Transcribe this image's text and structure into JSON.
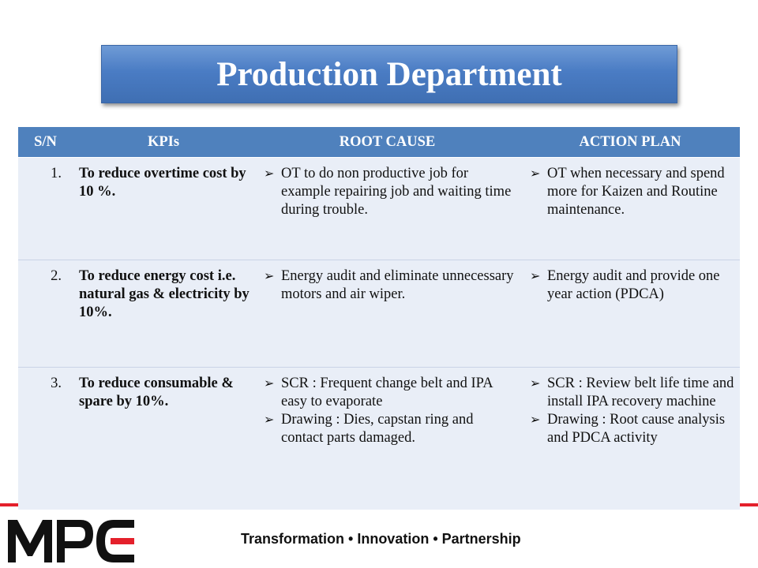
{
  "title": "Production Department",
  "table": {
    "headers": [
      "S/N",
      "KPIs",
      "ROOT CAUSE",
      "ACTION PLAN"
    ],
    "rows": [
      {
        "sn": "1.",
        "kpi": "To reduce overtime cost by 10 %.",
        "root_cause": [
          "OT to do non productive job for example repairing job and waiting time during trouble."
        ],
        "action_plan": [
          "OT when necessary and spend more for Kaizen and Routine maintenance."
        ]
      },
      {
        "sn": "2.",
        "kpi": "To reduce energy cost i.e. natural gas & electricity by 10%.",
        "root_cause": [
          "Energy audit and eliminate unnecessary motors and air wiper."
        ],
        "action_plan": [
          "Energy audit and provide one year action (PDCA)"
        ]
      },
      {
        "sn": "3.",
        "kpi": "To reduce consumable & spare by 10%.",
        "root_cause": [
          "SCR : Frequent change belt and IPA easy to evaporate",
          "Drawing : Dies, capstan ring and contact parts damaged."
        ],
        "action_plan": [
          "SCR : Review belt life time and install IPA recovery machine",
          "Drawing : Root cause analysis and PDCA activity"
        ]
      }
    ]
  },
  "footer": {
    "tagline": "Transformation • Innovation • Partnership",
    "logo_text": "MPC"
  },
  "colors": {
    "title_bg": "#4a7cc4",
    "header_bg": "#4f81bd",
    "row_bg": "#e9eef7",
    "accent_red": "#e4202b"
  },
  "icons": {
    "bullet": "arrow-bullet-icon"
  }
}
